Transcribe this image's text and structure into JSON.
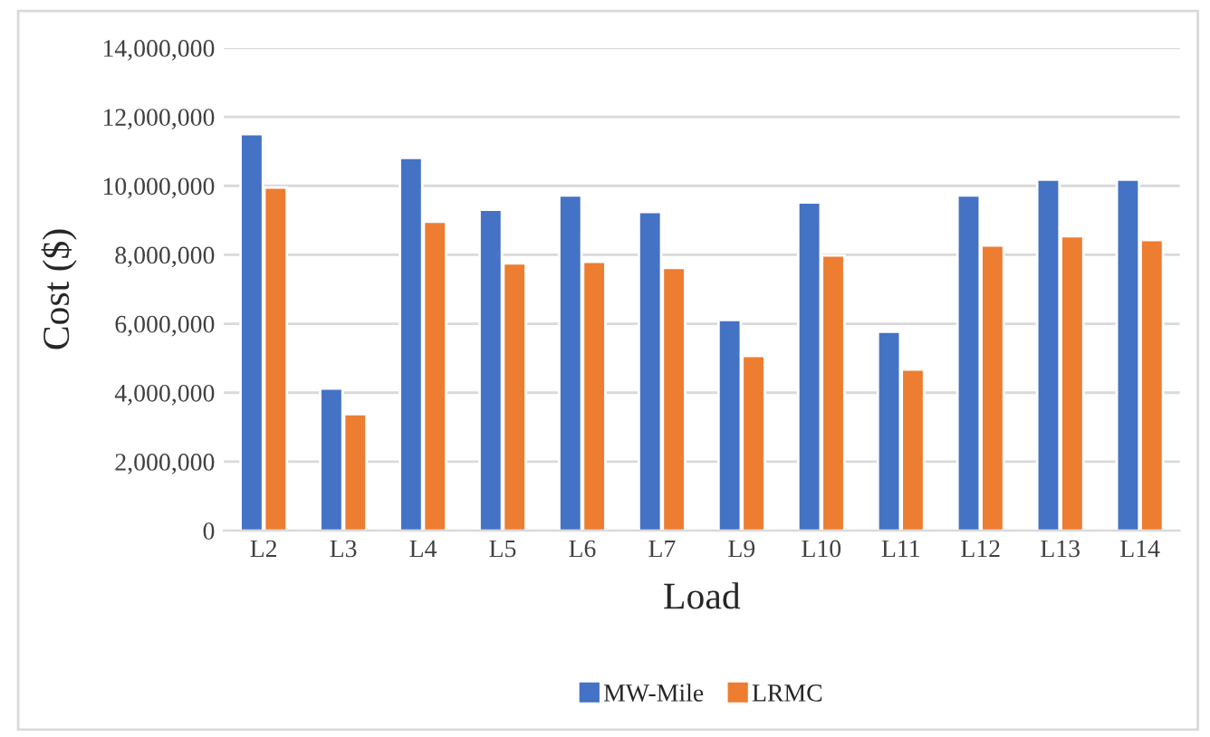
{
  "chart_data": {
    "type": "bar",
    "xlabel": "Load",
    "ylabel": "Cost ($)",
    "categories": [
      "L2",
      "L3",
      "L4",
      "L5",
      "L6",
      "L7",
      "L9",
      "L10",
      "L11",
      "L12",
      "L13",
      "L14"
    ],
    "series": [
      {
        "name": "MW-Mile",
        "color": "#4472c4",
        "values": [
          11500000,
          4120000,
          10810000,
          9310000,
          9720000,
          9240000,
          6110000,
          9520000,
          5770000,
          9720000,
          10180000,
          10180000
        ]
      },
      {
        "name": "LRMC",
        "color": "#ed7d31",
        "values": [
          9950000,
          3380000,
          8960000,
          7750000,
          7800000,
          7620000,
          5070000,
          7980000,
          4670000,
          8270000,
          8540000,
          8430000
        ]
      }
    ],
    "ylim": [
      0,
      14000000
    ],
    "yticks": [
      {
        "value": 0,
        "label": "0"
      },
      {
        "value": 2000000,
        "label": "2,000,000"
      },
      {
        "value": 4000000,
        "label": "4,000,000"
      },
      {
        "value": 6000000,
        "label": "6,000,000"
      },
      {
        "value": 8000000,
        "label": "8,000,000"
      },
      {
        "value": 10000000,
        "label": "10,000,000"
      },
      {
        "value": 12000000,
        "label": "12,000,000"
      },
      {
        "value": 14000000,
        "label": "14,000,000"
      }
    ],
    "grid": "y",
    "legend": "bottom"
  }
}
